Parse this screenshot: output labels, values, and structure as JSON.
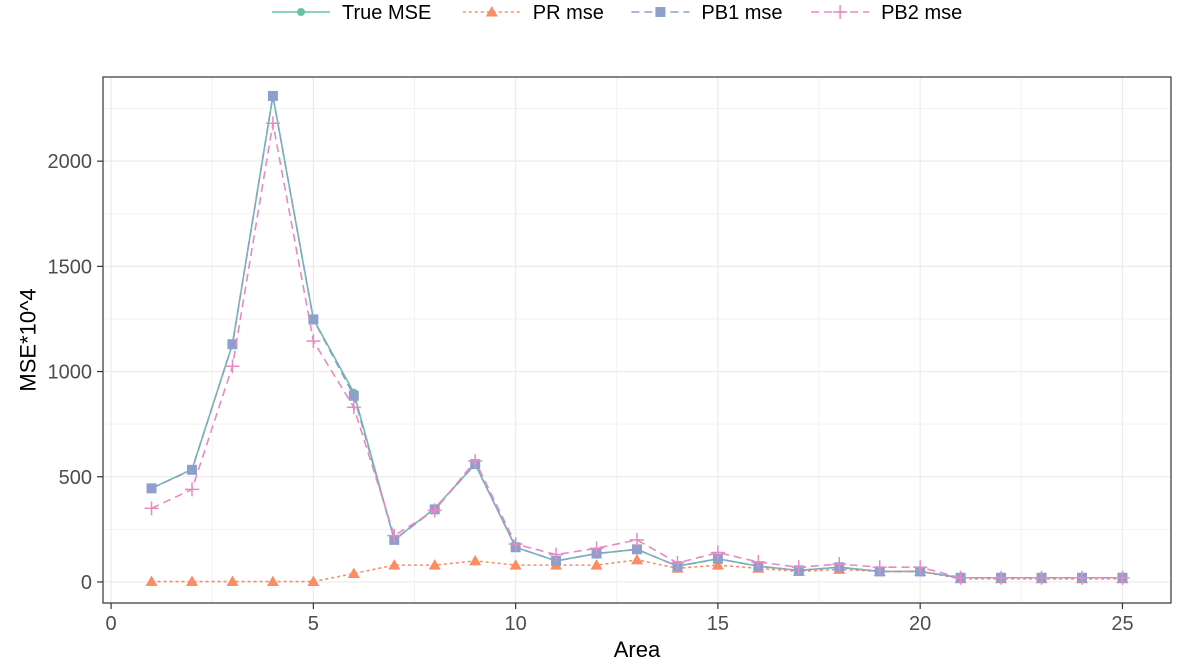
{
  "chart_data": {
    "type": "line",
    "title": "",
    "xlabel": "Area",
    "ylabel": "MSE*10^4",
    "xlim": [
      -0.2,
      26.2
    ],
    "ylim": [
      -100,
      2400
    ],
    "x_ticks": [
      0,
      5,
      10,
      15,
      20,
      25
    ],
    "y_ticks": [
      0,
      500,
      1000,
      1500,
      2000
    ],
    "grid": true,
    "legend_position": "top",
    "x": [
      1,
      2,
      3,
      4,
      5,
      6,
      7,
      8,
      9,
      10,
      11,
      12,
      13,
      14,
      15,
      16,
      17,
      18,
      19,
      20,
      21,
      22,
      23,
      24,
      25
    ],
    "series": [
      {
        "name": "True MSE",
        "color": "#66c2a5",
        "dash": "solid",
        "marker": "circle",
        "values": [
          445,
          535,
          1130,
          2310,
          1250,
          900,
          200,
          350,
          560,
          165,
          100,
          135,
          155,
          75,
          110,
          75,
          55,
          70,
          50,
          50,
          20,
          20,
          20,
          20,
          20
        ]
      },
      {
        "name": "PR mse",
        "color": "#fc8d62",
        "dash": "dotted",
        "marker": "triangle",
        "values": [
          2,
          2,
          2,
          2,
          2,
          40,
          80,
          80,
          100,
          80,
          80,
          80,
          105,
          65,
          80,
          65,
          50,
          60,
          50,
          50,
          15,
          15,
          15,
          15,
          15
        ]
      },
      {
        "name": "PB1 mse",
        "color": "#8da0cb",
        "dash": "dashed",
        "marker": "square",
        "values": [
          445,
          533,
          1130,
          2310,
          1248,
          885,
          200,
          345,
          560,
          165,
          100,
          135,
          155,
          75,
          110,
          75,
          55,
          70,
          50,
          50,
          20,
          20,
          20,
          20,
          20
        ]
      },
      {
        "name": "PB2 mse",
        "color": "#e78ac3",
        "dash": "dashed",
        "marker": "plus",
        "values": [
          350,
          440,
          1025,
          2180,
          1145,
          830,
          220,
          340,
          575,
          180,
          130,
          160,
          200,
          90,
          140,
          95,
          70,
          85,
          70,
          70,
          20,
          20,
          20,
          20,
          20
        ]
      }
    ]
  }
}
